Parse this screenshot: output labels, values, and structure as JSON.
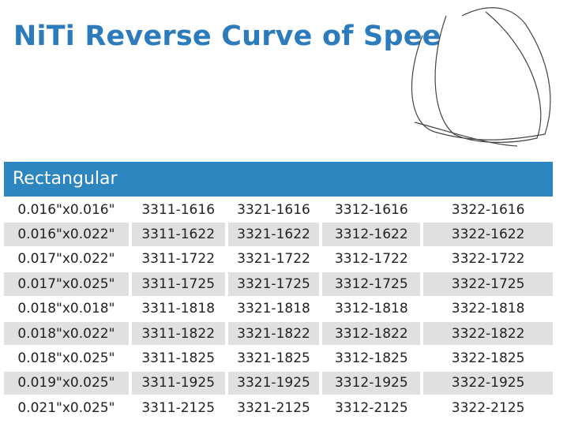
{
  "header": {
    "title": "NiTi Reverse Curve of Spee"
  },
  "table": {
    "heading": "Rectangular",
    "rows": [
      [
        "0.016\"x0.016\"",
        "3311-1616",
        "3321-1616",
        "3312-1616",
        "3322-1616"
      ],
      [
        "0.016\"x0.022\"",
        "3311-1622",
        "3321-1622",
        "3312-1622",
        "3322-1622"
      ],
      [
        "0.017\"x0.022\"",
        "3311-1722",
        "3321-1722",
        "3312-1722",
        "3322-1722"
      ],
      [
        "0.017\"x0.025\"",
        "3311-1725",
        "3321-1725",
        "3312-1725",
        "3322-1725"
      ],
      [
        "0.018\"x0.018\"",
        "3311-1818",
        "3321-1818",
        "3312-1818",
        "3322-1818"
      ],
      [
        "0.018\"x0.022\"",
        "3311-1822",
        "3321-1822",
        "3312-1822",
        "3322-1822"
      ],
      [
        "0.018\"x0.025\"",
        "3311-1825",
        "3321-1825",
        "3312-1825",
        "3322-1825"
      ],
      [
        "0.019\"x0.025\"",
        "3311-1925",
        "3321-1925",
        "3312-1925",
        "3322-1925"
      ],
      [
        "0.021\"x0.025\"",
        "3311-2125",
        "3321-2125",
        "3312-2125",
        "3322-2125"
      ]
    ]
  }
}
